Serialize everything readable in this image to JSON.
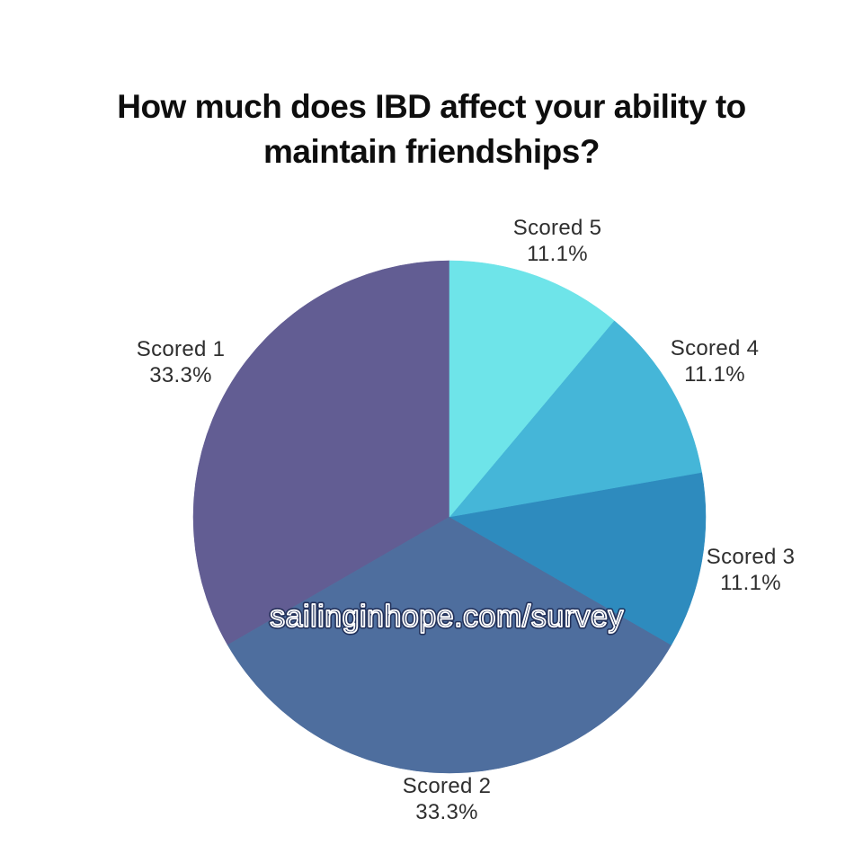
{
  "chart_data": {
    "type": "pie",
    "title": "How much does IBD affect your ability to maintain friendships?",
    "title_lines": [
      "How much does IBD affect your ability to",
      "maintain friendships?"
    ],
    "watermark": "sailinginhope.com/survey",
    "start_angle_deg": -90,
    "direction": "counterclockwise",
    "total_pct": 99.9,
    "slices": [
      {
        "label": "Scored 1",
        "value": 33.3,
        "pct_label": "33.3%",
        "color": "#625D93"
      },
      {
        "label": "Scored 2",
        "value": 33.3,
        "pct_label": "33.3%",
        "color": "#4E6E9E"
      },
      {
        "label": "Scored 3",
        "value": 11.1,
        "pct_label": "11.1%",
        "color": "#2E8BBE"
      },
      {
        "label": "Scored 4",
        "value": 11.1,
        "pct_label": "11.1%",
        "color": "#45B6D8"
      },
      {
        "label": "Scored 5",
        "value": 11.1,
        "pct_label": "11.1%",
        "color": "#6EE4E9"
      }
    ],
    "legend_position": "none",
    "labels_style": "outside-with-percent",
    "colors": {
      "background": "#FFFFFF",
      "title_text": "#0E0E0E",
      "label_text": "#2E2E2E",
      "watermark_stroke": "#FFFFFF",
      "watermark_rim": "#1C2850"
    }
  }
}
